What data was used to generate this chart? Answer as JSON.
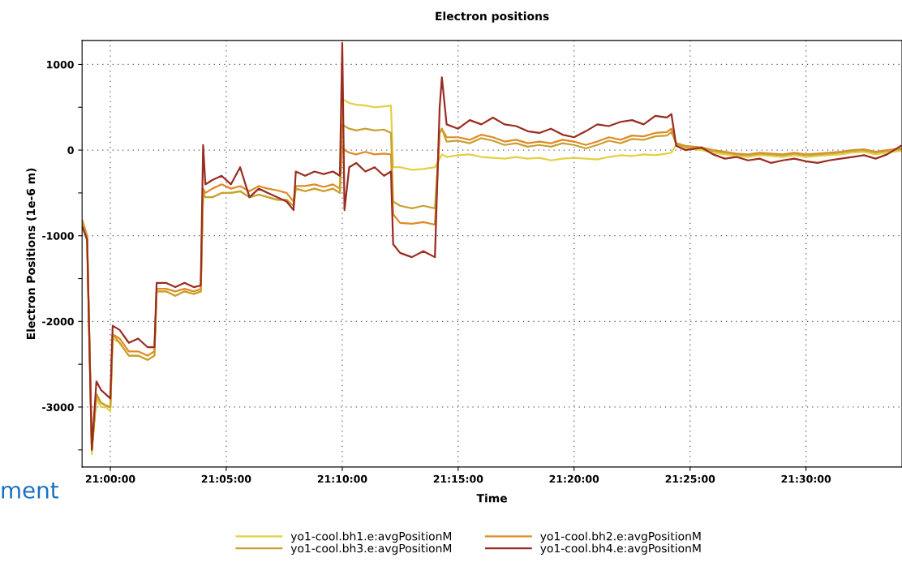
{
  "chart_data": {
    "type": "line",
    "title": "Electron positions",
    "xlabel": "Time",
    "ylabel": "Electron Positions (1e-6 m)",
    "annotations": [
      "ment"
    ],
    "x": [
      20.98,
      20.9833,
      20.9867,
      20.99,
      20.9933,
      20.9967,
      21.0,
      21.0017,
      21.0067,
      21.0133,
      21.02,
      21.0267,
      21.0317,
      21.0333,
      21.04,
      21.0467,
      21.0533,
      21.06,
      21.065,
      21.0667,
      21.0683,
      21.0733,
      21.08,
      21.0867,
      21.0933,
      21.1,
      21.1067,
      21.1133,
      21.12,
      21.1267,
      21.1317,
      21.1333,
      21.14,
      21.1467,
      21.1533,
      21.16,
      21.165,
      21.1667,
      21.1683,
      21.1717,
      21.1767,
      21.1833,
      21.19,
      21.1967,
      21.2017,
      21.2033,
      21.2083,
      21.2167,
      21.225,
      21.2333,
      21.2367,
      21.2383,
      21.2417,
      21.25,
      21.2583,
      21.2667,
      21.275,
      21.2833,
      21.2917,
      21.3,
      21.3083,
      21.3167,
      21.325,
      21.3333,
      21.3417,
      21.35,
      21.3583,
      21.3667,
      21.375,
      21.3833,
      21.3917,
      21.4,
      21.4033,
      21.4067,
      21.4133,
      21.425,
      21.4333,
      21.4417,
      21.45,
      21.4583,
      21.4667,
      21.475,
      21.4833,
      21.4917,
      21.5,
      21.5083,
      21.5167,
      21.525,
      21.5333,
      21.5417,
      21.55,
      21.5583,
      21.5683
    ],
    "series": [
      {
        "name": "yo1-cool.bh1.e:avgPositionM",
        "color": "#e2d044",
        "values": [
          -850,
          -1000,
          -3550,
          -2900,
          -3000,
          -3000,
          -3050,
          -2200,
          -2250,
          -2400,
          -2400,
          -2450,
          -2400,
          -1650,
          -1650,
          -1700,
          -1650,
          -1680,
          -1650,
          -500,
          -550,
          -550,
          -500,
          -500,
          -480,
          -550,
          -520,
          -550,
          -580,
          -580,
          -650,
          -450,
          -480,
          -450,
          -480,
          -450,
          -500,
          600,
          580,
          550,
          530,
          520,
          500,
          510,
          520,
          -200,
          -200,
          -230,
          -220,
          -200,
          -100,
          -50,
          -80,
          -60,
          -50,
          -80,
          -90,
          -100,
          -80,
          -100,
          -90,
          -120,
          -100,
          -90,
          -100,
          -110,
          -80,
          -60,
          -70,
          -50,
          -60,
          -40,
          -30,
          60,
          20,
          0,
          -30,
          -50,
          -70,
          -80,
          -60,
          -70,
          -80,
          -60,
          -80,
          -70,
          -60,
          -50,
          -30,
          -20,
          -50,
          -30,
          -10
        ]
      },
      {
        "name": "yo1-cool.bh2.e:avgPositionM",
        "color": "#e08a24",
        "values": [
          -850,
          -1000,
          -3500,
          -2850,
          -2950,
          -2980,
          -3000,
          -2150,
          -2200,
          -2350,
          -2350,
          -2400,
          -2350,
          -1620,
          -1620,
          -1650,
          -1620,
          -1650,
          -1620,
          -450,
          -500,
          -450,
          -400,
          -450,
          -420,
          -480,
          -420,
          -450,
          -470,
          -500,
          -600,
          -420,
          -420,
          -400,
          -430,
          -400,
          -450,
          50,
          0,
          -30,
          -50,
          -20,
          -50,
          -40,
          -50,
          -750,
          -850,
          -860,
          -840,
          -870,
          200,
          250,
          150,
          150,
          120,
          180,
          150,
          100,
          120,
          80,
          100,
          80,
          120,
          100,
          60,
          100,
          150,
          120,
          170,
          160,
          200,
          210,
          250,
          80,
          50,
          30,
          0,
          -20,
          -40,
          -50,
          -30,
          -40,
          -50,
          -30,
          -50,
          -40,
          -30,
          -20,
          0,
          10,
          -20,
          0,
          20
        ]
      },
      {
        "name": "yo1-cool.bh3.e:avgPositionM",
        "color": "#c8a032",
        "values": [
          -820,
          -1000,
          -3500,
          -2850,
          -2950,
          -2980,
          -3000,
          -2150,
          -2250,
          -2400,
          -2400,
          -2450,
          -2400,
          -1650,
          -1650,
          -1700,
          -1650,
          -1680,
          -1650,
          -500,
          -550,
          -550,
          -500,
          -500,
          -480,
          -550,
          -520,
          -550,
          -580,
          -580,
          -650,
          -450,
          -480,
          -450,
          -480,
          -450,
          -500,
          300,
          280,
          250,
          230,
          250,
          230,
          240,
          200,
          -600,
          -650,
          -680,
          -650,
          -680,
          200,
          250,
          100,
          110,
          80,
          140,
          110,
          60,
          80,
          40,
          60,
          40,
          80,
          60,
          20,
          60,
          110,
          80,
          130,
          120,
          160,
          170,
          210,
          70,
          40,
          20,
          -10,
          -30,
          -50,
          -60,
          -40,
          -50,
          -60,
          -40,
          -60,
          -50,
          -40,
          -30,
          -10,
          0,
          -30,
          -10,
          10
        ]
      },
      {
        "name": "yo1-cool.bh4.e:avgPositionM",
        "color": "#9a2c22",
        "values": [
          -900,
          -1050,
          -3500,
          -2700,
          -2800,
          -2850,
          -2900,
          -2050,
          -2100,
          -2250,
          -2200,
          -2300,
          -2300,
          -1550,
          -1550,
          -1600,
          -1550,
          -1600,
          -1580,
          60,
          -400,
          -350,
          -300,
          -400,
          -200,
          -550,
          -450,
          -500,
          -550,
          -600,
          -700,
          -250,
          -300,
          -250,
          -280,
          -250,
          -300,
          1250,
          -700,
          -200,
          -150,
          -250,
          -200,
          -300,
          -250,
          -1100,
          -1200,
          -1250,
          -1180,
          -1250,
          500,
          850,
          300,
          250,
          350,
          300,
          380,
          300,
          280,
          220,
          200,
          250,
          180,
          150,
          220,
          300,
          280,
          330,
          350,
          300,
          400,
          380,
          420,
          50,
          0,
          30,
          -50,
          -100,
          -80,
          -120,
          -100,
          -150,
          -120,
          -100,
          -130,
          -150,
          -120,
          -100,
          -80,
          -60,
          -100,
          -50,
          50
        ]
      }
    ],
    "xlim": [
      20.9797,
      21.569
    ],
    "xticks": [
      {
        "value": 21.0,
        "label": "21:00:00"
      },
      {
        "value": 21.0833,
        "label": "21:05:00"
      },
      {
        "value": 21.1667,
        "label": "21:10:00"
      },
      {
        "value": 21.25,
        "label": "21:15:00"
      },
      {
        "value": 21.3333,
        "label": "21:20:00"
      },
      {
        "value": 21.4167,
        "label": "21:25:00"
      },
      {
        "value": 21.5,
        "label": "21:30:00"
      }
    ],
    "ylim": [
      -3700,
      1280
    ],
    "yticks": [
      {
        "value": -3500,
        "label": null
      },
      -3000,
      {
        "value": -2500,
        "label": null
      },
      -2000,
      {
        "value": -1500,
        "label": null
      },
      -1000,
      {
        "value": -500,
        "label": null
      },
      0,
      {
        "value": 500,
        "label": null
      },
      1000
    ],
    "grid": true,
    "legend": "bottom",
    "marker": "none",
    "line_style": "solid"
  }
}
